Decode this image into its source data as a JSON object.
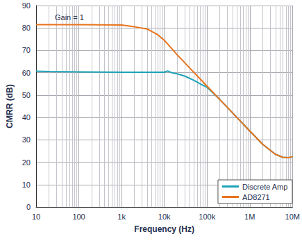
{
  "chart_data": {
    "type": "line",
    "annotation": "Gain = 1",
    "x_label": "Frequency (Hz)",
    "y_label": "CMRR (dB)",
    "log": "x",
    "grid": true,
    "legend": "lower right",
    "xlim": [
      10,
      10000000
    ],
    "xticks": [
      {
        "value": 10,
        "label": "10"
      },
      {
        "value": 100,
        "label": "100"
      },
      {
        "value": 1000,
        "label": "1k"
      },
      {
        "value": 10000,
        "label": "10k"
      },
      {
        "value": 100000,
        "label": "100k"
      },
      {
        "value": 1000000,
        "label": "1M"
      },
      {
        "value": 10000000,
        "label": "10M"
      }
    ],
    "ylim": [
      0,
      90
    ],
    "yticks": [
      0,
      10,
      20,
      30,
      40,
      50,
      60,
      70,
      80,
      90
    ],
    "series": [
      {
        "name": "Discrete Amp",
        "color": "#1ba3b6",
        "x": [
          10,
          20,
          100,
          1000,
          10000,
          12000,
          15000,
          20000,
          30000,
          50000,
          70000,
          100000,
          200000,
          500000,
          1000000,
          2000000,
          4000000,
          6000000,
          8000000,
          10000000
        ],
        "values": [
          60.7,
          60.5,
          60.4,
          60.2,
          60.2,
          60.8,
          60,
          59.5,
          58.5,
          56.5,
          55,
          53.5,
          48,
          40,
          34,
          28,
          23.5,
          22.2,
          22,
          22.5
        ]
      },
      {
        "name": "AD8271",
        "color": "#e8731c",
        "x": [
          10,
          100,
          1000,
          2000,
          4000,
          7000,
          10000,
          20000,
          50000,
          100000,
          200000,
          500000,
          1000000,
          2000000,
          4000000,
          6000000,
          8000000,
          10000000
        ],
        "values": [
          81.5,
          81.5,
          81.3,
          80.5,
          79.5,
          77,
          74.5,
          68,
          60,
          54,
          48,
          40,
          34,
          28,
          23.5,
          22.2,
          22,
          22.5
        ]
      }
    ]
  }
}
